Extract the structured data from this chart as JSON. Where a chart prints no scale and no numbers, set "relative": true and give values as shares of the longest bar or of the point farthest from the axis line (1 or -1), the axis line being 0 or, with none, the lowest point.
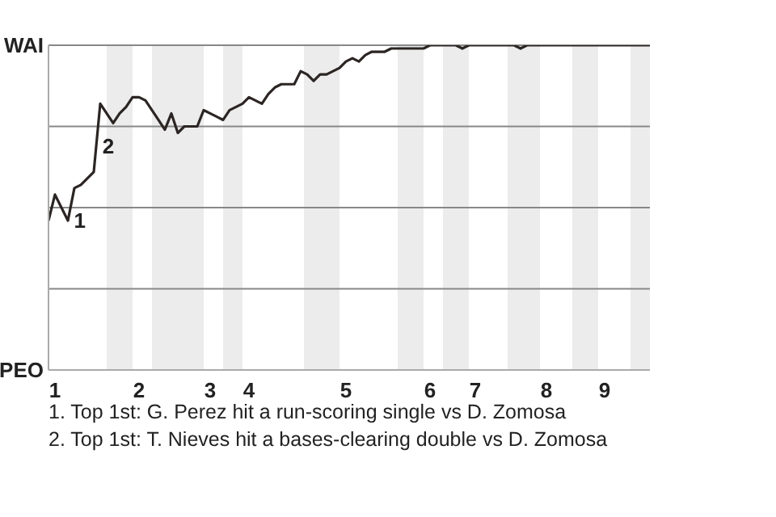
{
  "chart_data": {
    "type": "line",
    "relative": true,
    "categories": [
      null,
      "1",
      null,
      null,
      null,
      null,
      null,
      null,
      null,
      null,
      null,
      null,
      null,
      null,
      "2",
      null,
      null,
      null,
      null,
      null,
      null,
      null,
      null,
      null,
      null,
      "3",
      null,
      null,
      null,
      null,
      null,
      "4",
      null,
      null,
      null,
      null,
      null,
      null,
      null,
      null,
      null,
      null,
      null,
      null,
      null,
      null,
      "5",
      null,
      null,
      null,
      null,
      null,
      null,
      null,
      null,
      null,
      null,
      null,
      null,
      "6",
      null,
      null,
      null,
      null,
      null,
      null,
      "7",
      null,
      null,
      null,
      null,
      null,
      null,
      null,
      null,
      null,
      null,
      "8",
      null,
      null,
      null,
      null,
      null,
      null,
      null,
      null,
      "9",
      null,
      null,
      null,
      null,
      null,
      null,
      null
    ],
    "series": [
      {
        "color": "#2b2523",
        "values": [
          0.46,
          0.54,
          0.5,
          0.46,
          0.56,
          0.57,
          0.59,
          0.61,
          0.82,
          0.79,
          0.76,
          0.79,
          0.81,
          0.84,
          0.84,
          0.83,
          0.8,
          0.77,
          0.74,
          0.79,
          0.73,
          0.75,
          0.75,
          0.75,
          0.8,
          0.79,
          0.78,
          0.77,
          0.8,
          0.81,
          0.82,
          0.84,
          0.83,
          0.82,
          0.85,
          0.87,
          0.88,
          0.88,
          0.88,
          0.92,
          0.91,
          0.89,
          0.91,
          0.91,
          0.92,
          0.93,
          0.95,
          0.96,
          0.95,
          0.97,
          0.98,
          0.98,
          0.98,
          0.99,
          0.99,
          0.99,
          0.99,
          0.99,
          0.99,
          1,
          1,
          1,
          1,
          1,
          0.99,
          1,
          1,
          1,
          1,
          1,
          1,
          1,
          1,
          0.99,
          1,
          1,
          1,
          1,
          1,
          1,
          1,
          1,
          1,
          1,
          1,
          1,
          1,
          1,
          1,
          1,
          1,
          1,
          1,
          1
        ]
      }
    ],
    "grid": "y",
    "marker": "none",
    "line_style": "solid",
    "annotations": [
      "WAI",
      "PEO",
      "1",
      "2",
      "1. Top 1st: G. Perez hit a run-scoring single vs D. Zomosa",
      "2. Top 1st: T. Nieves hit a bases-clearing double vs D. Zomosa"
    ]
  }
}
